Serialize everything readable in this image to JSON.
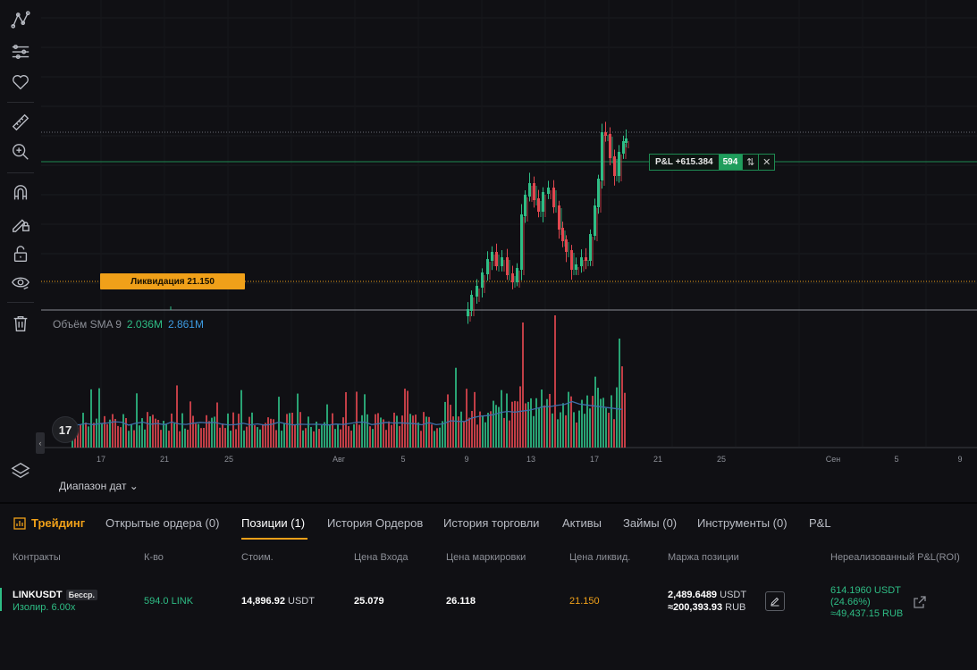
{
  "chart": {
    "liquidation_label": "Ликвидация 21.150",
    "pnl_label": "P&L +615.384",
    "pnl_qty": "594",
    "pnl_swap_glyph": "⇅",
    "pnl_close_glyph": "✕",
    "volume_legend": {
      "label": "Объём SMA 9",
      "value1": "2.036M",
      "value2": "2.861M"
    },
    "logo_text": "17",
    "collapse_glyph": "‹",
    "x_ticks": [
      "17",
      "21",
      "25",
      "Авг",
      "5",
      "9",
      "13",
      "17",
      "21",
      "25",
      "Сен",
      "5",
      "9"
    ],
    "date_range_label": "Диапазон дат",
    "date_range_chevron": "⌄",
    "colors": {
      "up": "#2ebd85",
      "down": "#e0474f",
      "sma": "#3d6fa8",
      "liquidation": "#f0a019",
      "position": "#1e8a52"
    }
  },
  "toolbar": {
    "tools": [
      "trend-line-icon",
      "indicator-list-icon",
      "favorites-heart-icon",
      "ruler-icon",
      "zoom-in-icon",
      "magnet-icon",
      "lock-drawing-icon",
      "unlock-icon",
      "eye-icon",
      "trash-icon",
      "layers-icon"
    ]
  },
  "tabs": {
    "trading": "Трейдинг",
    "open_orders": "Открытые ордера (0)",
    "positions": "Позиции (1)",
    "order_history": "История Ордеров",
    "trade_history": "История торговли",
    "assets": "Активы",
    "loans": "Займы (0)",
    "tools": "Инструменты (0)",
    "pnl": "P&L"
  },
  "table": {
    "headers": {
      "contracts": "Контракты",
      "qty": "К-во",
      "value": "Стоим.",
      "entry_price": "Цена Входа",
      "mark_price": "Цена маркировки",
      "liq_price": "Цена ликвид.",
      "margin": "Маржа позиции",
      "unrealized": "Нереализованный P&L(ROI)"
    },
    "row": {
      "symbol": "LINKUSDT",
      "badge": "Бесср.",
      "mode": "Изолир. 6.00x",
      "qty": "594.0 LINK",
      "value": "14,896.92",
      "value_unit": "USDT",
      "entry_price": "25.079",
      "mark_price": "26.118",
      "liq_price": "21.150",
      "margin_usdt": "2,489.6489",
      "margin_usdt_unit": "USDT",
      "margin_rub": "≈200,393.93",
      "margin_rub_unit": "RUB",
      "pnl_usdt": "614.1960 USDT",
      "pnl_roi": "(24.66%)",
      "pnl_rub": "≈49,437.15 RUB"
    }
  }
}
